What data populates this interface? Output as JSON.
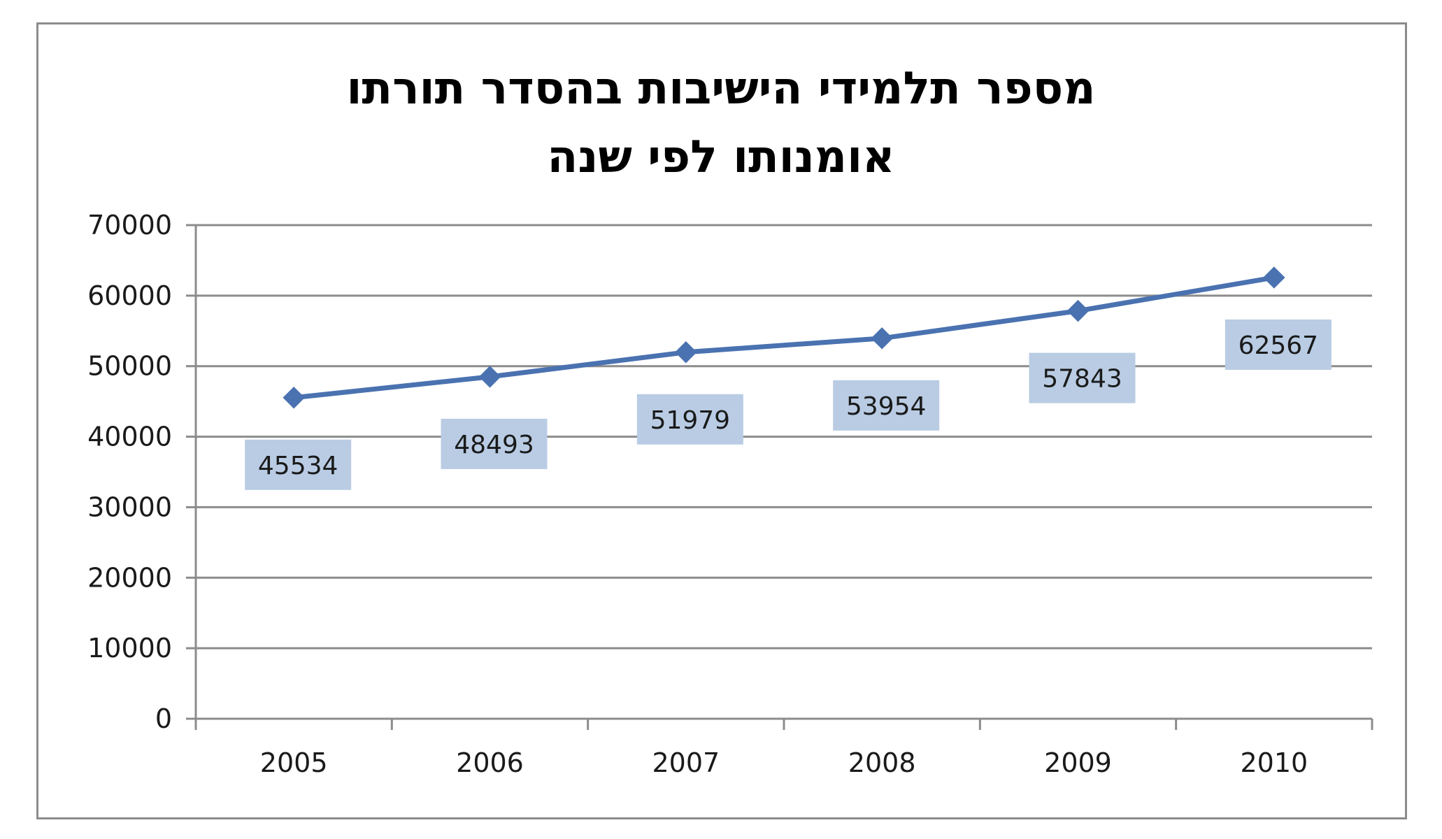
{
  "chart_data": {
    "type": "line",
    "title_lines": [
      "מספר תלמידי הישיבות בהסדר תורתו",
      "אומנותו לפי שנה"
    ],
    "xlabel": "",
    "ylabel": "",
    "categories": [
      "2005",
      "2006",
      "2007",
      "2008",
      "2009",
      "2010"
    ],
    "series": [
      {
        "values": [
          45534,
          48493,
          51979,
          53954,
          57843,
          62567
        ],
        "labels": [
          "45534",
          "48493",
          "51979",
          "53954",
          "57843",
          "62567"
        ]
      }
    ],
    "ylim": [
      0,
      70000
    ],
    "y_ticks": [
      "0",
      "10000",
      "20000",
      "30000",
      "40000",
      "50000",
      "60000",
      "70000"
    ],
    "grid": true,
    "legend": "none",
    "colors": {
      "line": "#4a72b0",
      "marker": "#4a72b0",
      "label_box": "#b9cce4",
      "grid": "#8c8c8c",
      "frame": "#8c8c8c"
    }
  }
}
